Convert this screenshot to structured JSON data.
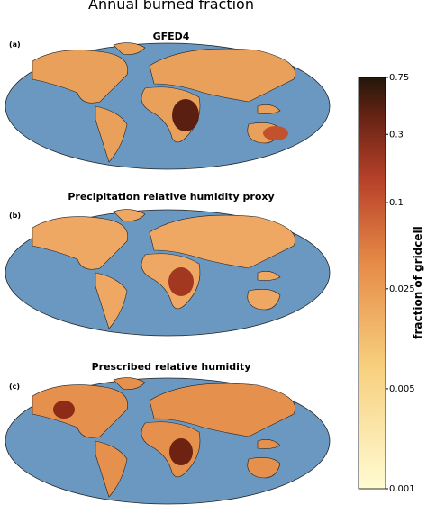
{
  "title": "Annual burned fraction",
  "panels": [
    {
      "label": "(a)",
      "title": "GFED4"
    },
    {
      "label": "(b)",
      "title": "Precipitation relative humidity proxy"
    },
    {
      "label": "(c)",
      "title": "Prescribed relative humidity"
    }
  ],
  "colorbar": {
    "label": "fraction of gridcell",
    "scale": "log",
    "lim": [
      0.001,
      0.75
    ],
    "ticks": [
      0.001,
      0.005,
      0.025,
      0.1,
      0.3,
      0.75
    ]
  }
}
